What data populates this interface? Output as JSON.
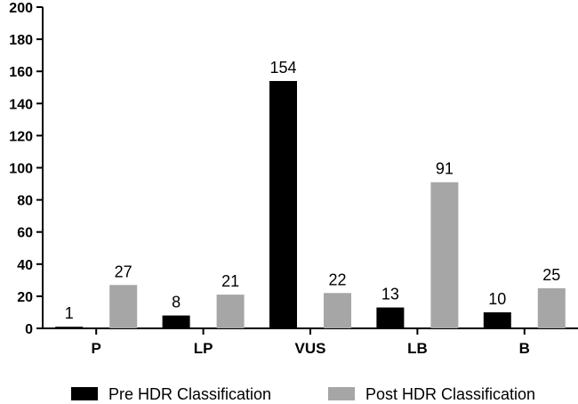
{
  "chart_data": {
    "type": "bar",
    "categories": [
      "P",
      "LP",
      "VUS",
      "LB",
      "B"
    ],
    "series": [
      {
        "name": "Pre HDR Classification",
        "values": [
          1,
          8,
          154,
          13,
          10
        ],
        "color": "#000000"
      },
      {
        "name": "Post HDR Classification",
        "values": [
          27,
          21,
          22,
          91,
          25
        ],
        "color": "#a6a6a6"
      }
    ],
    "yticks": [
      0,
      20,
      40,
      60,
      80,
      100,
      120,
      140,
      160,
      180,
      200
    ],
    "ylim": [
      0,
      200
    ],
    "xlabel": "",
    "ylabel": "",
    "title": "",
    "grid": false,
    "legend_position": "bottom"
  }
}
